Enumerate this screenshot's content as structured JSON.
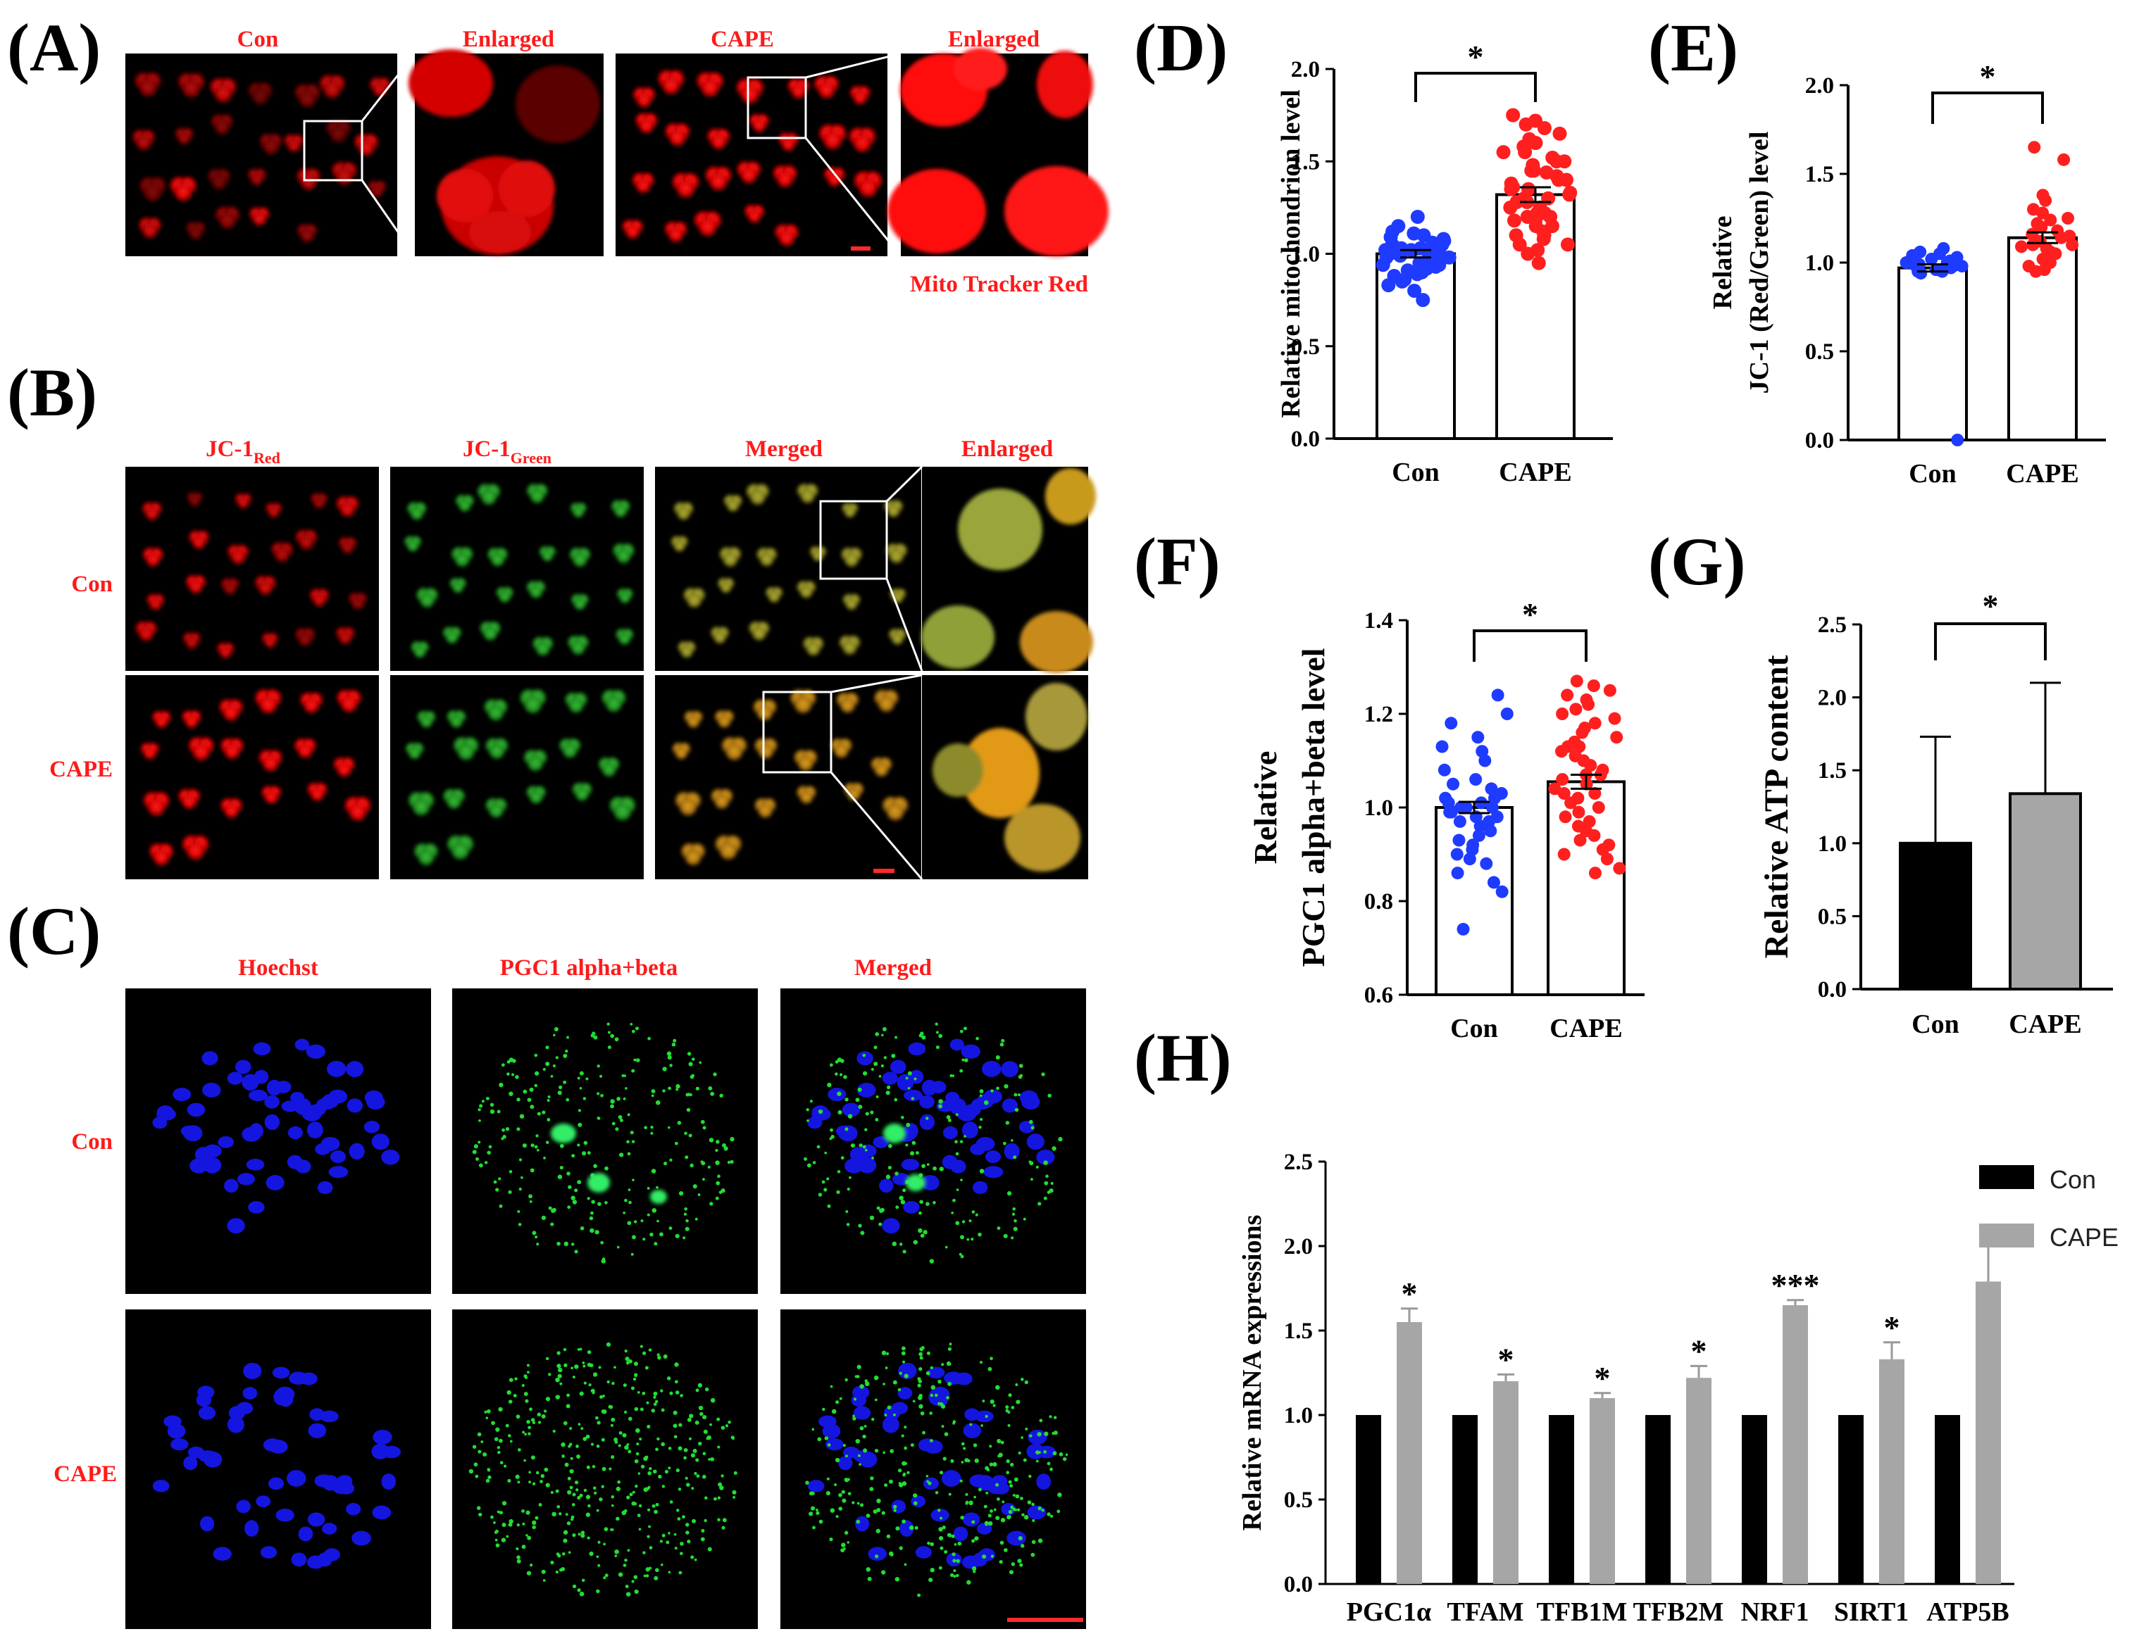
{
  "panel_letters": {
    "A": "(A)",
    "B": "(B)",
    "C": "(C)",
    "D": "(D)",
    "E": "(E)",
    "F": "(F)",
    "G": "(G)",
    "H": "(H)"
  },
  "panel_a": {
    "labels": [
      "Con",
      "Enlarged",
      "CAPE",
      "Enlarged"
    ],
    "stain": "Mito Tracker Red"
  },
  "panel_b": {
    "col1_main": "JC-1",
    "col1_sub": "Red",
    "col2_main": "JC-1",
    "col2_sub": "Green",
    "col3": "Merged",
    "col4": "Enlarged",
    "rows": [
      "Con",
      "CAPE"
    ]
  },
  "panel_c": {
    "cols": [
      "Hoechst",
      "PGC1  alpha+beta",
      "Merged"
    ],
    "rows": [
      "Con",
      "CAPE"
    ]
  },
  "colors": {
    "con": "#1f3bff",
    "cape": "#ff1f1f",
    "black_bar": "#000000",
    "gray_bar": "#a6a6a6"
  },
  "chart_data": [
    {
      "id": "D",
      "type": "bar",
      "ylabel": "Relative mitochondrion  level",
      "categories": [
        "Con",
        "CAPE"
      ],
      "values": [
        1.0,
        1.32
      ],
      "sem": [
        0.02,
        0.04
      ],
      "ylim": [
        0.0,
        2.0
      ],
      "yticks": [
        "0.0",
        "0.5",
        "1.0",
        "1.5",
        "2.0"
      ],
      "significance": "*",
      "points": {
        "Con": [
          1.0,
          0.98,
          1.05,
          0.95,
          1.1,
          0.92,
          1.02,
          0.88,
          1.08,
          0.96,
          1.0,
          0.85,
          1.12,
          0.94,
          1.03,
          0.9,
          1.06,
          0.99,
          0.8,
          1.15,
          0.97,
          1.01,
          0.93,
          1.07,
          0.86,
          1.04,
          0.91,
          1.09,
          0.75,
          1.2,
          0.98,
          1.0,
          0.96,
          1.03,
          0.89,
          1.11,
          0.94,
          1.02,
          0.83,
          1.05
        ],
        "CAPE": [
          1.7,
          1.65,
          1.6,
          1.55,
          1.5,
          1.45,
          1.4,
          1.35,
          1.3,
          1.25,
          1.2,
          1.15,
          1.1,
          1.05,
          1.0,
          0.95,
          1.72,
          1.62,
          1.52,
          1.42,
          1.32,
          1.22,
          1.12,
          1.02,
          1.68,
          1.58,
          1.48,
          1.38,
          1.28,
          1.18,
          1.08,
          1.75,
          1.35,
          1.45,
          1.25,
          1.15,
          1.55,
          1.3,
          1.2,
          1.4,
          1.1,
          1.6,
          1.28,
          1.36,
          1.18,
          1.44,
          1.05,
          1.5,
          1.22,
          1.33
        ]
      }
    },
    {
      "id": "E",
      "type": "bar",
      "ylabel_line1": "Relative",
      "ylabel_line2": "JC-1 (Red/Green) level",
      "categories": [
        "Con",
        "CAPE"
      ],
      "values": [
        0.97,
        1.14
      ],
      "sem": [
        0.02,
        0.03
      ],
      "ylim": [
        0.0,
        2.0
      ],
      "yticks": [
        "0.0",
        "0.5",
        "1.0",
        "1.5",
        "2.0"
      ],
      "significance": "*",
      "points": {
        "Con": [
          1.0,
          0.98,
          1.02,
          0.96,
          1.05,
          0.95,
          1.0,
          0.99,
          1.03,
          0.97,
          1.01,
          0.94,
          1.04,
          0.98,
          1.06,
          0.96,
          1.0,
          0.99,
          1.02,
          0.97,
          1.08,
          0.95,
          1.01,
          0.0
        ],
        "CAPE": [
          1.65,
          1.58,
          1.38,
          1.3,
          1.25,
          1.2,
          1.15,
          1.12,
          1.1,
          1.08,
          1.05,
          1.02,
          1.0,
          0.98,
          0.95,
          1.35,
          1.28,
          1.22,
          1.18,
          1.14,
          1.1,
          1.06,
          1.03,
          0.96,
          1.24,
          1.16,
          1.12,
          1.09
        ]
      }
    },
    {
      "id": "F",
      "type": "bar",
      "ylabel_line1": "Relative",
      "ylabel_line2": "PGC1  alpha+beta  level",
      "categories": [
        "Con",
        "CAPE"
      ],
      "values": [
        1.0,
        1.055
      ],
      "sem": [
        0.012,
        0.015
      ],
      "ylim": [
        0.6,
        1.4
      ],
      "yticks": [
        "0.6",
        "0.8",
        "1.0",
        "1.2",
        "1.4"
      ],
      "significance": "*",
      "points": {
        "Con": [
          1.24,
          1.2,
          1.18,
          1.15,
          1.12,
          1.1,
          1.08,
          1.05,
          1.03,
          1.02,
          1.01,
          1.0,
          0.99,
          0.98,
          0.97,
          0.96,
          0.95,
          0.93,
          0.92,
          0.9,
          0.88,
          0.86,
          0.84,
          0.82,
          0.74,
          1.0,
          1.0,
          0.99,
          1.01,
          0.98,
          1.02,
          0.97,
          1.04,
          0.94,
          1.06,
          0.91,
          1.13,
          0.89
        ],
        "CAPE": [
          1.27,
          1.25,
          1.23,
          1.21,
          1.19,
          1.17,
          1.15,
          1.13,
          1.11,
          1.09,
          1.07,
          1.05,
          1.03,
          1.01,
          0.99,
          0.97,
          0.95,
          0.93,
          0.91,
          0.89,
          0.87,
          0.86,
          1.26,
          1.22,
          1.18,
          1.14,
          1.1,
          1.06,
          1.02,
          0.98,
          0.94,
          0.9,
          1.2,
          1.16,
          1.12,
          1.08,
          1.04,
          1.0,
          0.96,
          0.92,
          1.24,
          1.07,
          1.13,
          1.03
        ]
      }
    },
    {
      "id": "G",
      "type": "bar",
      "ylabel": "Relative ATP  content",
      "categories": [
        "Con",
        "CAPE"
      ],
      "values": [
        1.0,
        1.34
      ],
      "sd": [
        0.73,
        0.76
      ],
      "ylim": [
        0.0,
        2.5
      ],
      "yticks": [
        "0.0",
        "0.5",
        "1.0",
        "1.5",
        "2.0",
        "2.5"
      ],
      "significance": "*"
    },
    {
      "id": "H",
      "type": "bar",
      "ylabel": "Relative mRNA expressions",
      "categories": [
        "PGC1α",
        "TFAM",
        "TFB1M",
        "TFB2M",
        "NRF1",
        "SIRT1",
        "ATP5B"
      ],
      "series": [
        {
          "name": "Con",
          "values": [
            1,
            1,
            1,
            1,
            1,
            1,
            1
          ]
        },
        {
          "name": "CAPE",
          "values": [
            1.55,
            1.2,
            1.1,
            1.22,
            1.65,
            1.33,
            1.79
          ],
          "err": [
            0.08,
            0.04,
            0.03,
            0.07,
            0.03,
            0.1,
            0.3
          ]
        }
      ],
      "significance": [
        "*",
        "*",
        "*",
        "*",
        "***",
        "*",
        ""
      ],
      "ylim": [
        0.0,
        2.5
      ],
      "yticks": [
        "0.0",
        "0.5",
        "1.0",
        "1.5",
        "2.0",
        "2.5"
      ],
      "legend": [
        "Con",
        "CAPE"
      ]
    }
  ]
}
